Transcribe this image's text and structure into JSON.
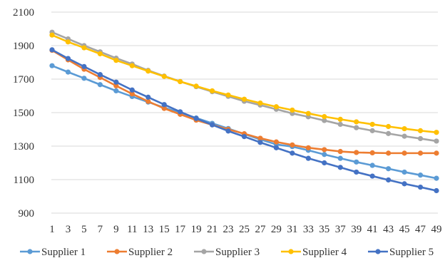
{
  "chart_data": {
    "type": "line",
    "title": "",
    "xlabel": "",
    "ylabel": "",
    "ylim": [
      900,
      2100
    ],
    "yticks": [
      900,
      1100,
      1300,
      1500,
      1700,
      1900,
      2100
    ],
    "xticks": [
      1,
      3,
      5,
      7,
      9,
      11,
      13,
      15,
      17,
      19,
      21,
      23,
      25,
      27,
      29,
      31,
      33,
      35,
      37,
      39,
      41,
      43,
      45,
      47,
      49
    ],
    "grid": "horizontal",
    "legend_position": "bottom",
    "x": [
      1,
      3,
      5,
      7,
      9,
      11,
      13,
      15,
      17,
      19,
      21,
      23,
      25,
      27,
      29,
      31,
      33,
      35,
      37,
      39,
      41,
      43,
      45,
      47,
      49
    ],
    "series": [
      {
        "name": "Supplier 1",
        "color": "#5B9BD5",
        "values": [
          1780,
          1742,
          1705,
          1667,
          1630,
          1596,
          1563,
          1530,
          1499,
          1468,
          1436,
          1405,
          1372,
          1340,
          1310,
          1297,
          1275,
          1250,
          1227,
          1205,
          1185,
          1165,
          1145,
          1127,
          1108
        ]
      },
      {
        "name": "Supplier 2",
        "color": "#ED7D31",
        "values": [
          1872,
          1815,
          1759,
          1710,
          1660,
          1612,
          1567,
          1525,
          1490,
          1455,
          1427,
          1400,
          1374,
          1347,
          1325,
          1307,
          1290,
          1279,
          1268,
          1262,
          1260,
          1258,
          1258,
          1258,
          1258
        ]
      },
      {
        "name": "Supplier 3",
        "color": "#A5A5A5",
        "values": [
          1980,
          1940,
          1900,
          1863,
          1825,
          1790,
          1752,
          1718,
          1686,
          1655,
          1625,
          1597,
          1568,
          1545,
          1520,
          1495,
          1475,
          1453,
          1430,
          1410,
          1392,
          1375,
          1359,
          1345,
          1330
        ]
      },
      {
        "name": "Supplier 4",
        "color": "#FFC000",
        "values": [
          1963,
          1922,
          1887,
          1851,
          1812,
          1780,
          1748,
          1716,
          1685,
          1658,
          1630,
          1605,
          1580,
          1557,
          1535,
          1515,
          1495,
          1476,
          1460,
          1445,
          1430,
          1417,
          1404,
          1392,
          1382
        ]
      },
      {
        "name": "Supplier 5",
        "color": "#4472C4",
        "values": [
          1875,
          1823,
          1775,
          1727,
          1682,
          1635,
          1592,
          1548,
          1505,
          1465,
          1427,
          1390,
          1357,
          1322,
          1290,
          1258,
          1227,
          1200,
          1173,
          1145,
          1121,
          1098,
          1075,
          1055,
          1034
        ]
      }
    ]
  }
}
